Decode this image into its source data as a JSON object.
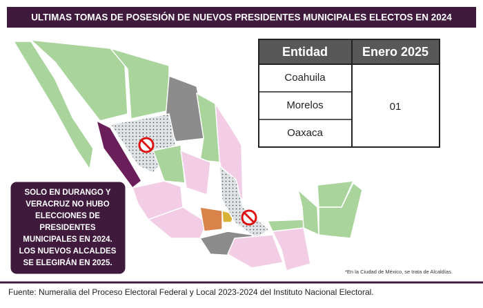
{
  "header": {
    "title": "ULTIMAS TOMAS DE POSESIÓN DE NUEVOS PRESIDENTES MUNICIPALES ELECTOS EN 2024"
  },
  "table": {
    "columns": [
      "Entidad",
      "Enero 2025"
    ],
    "rows": [
      "Coahuila",
      "Morelos",
      "Oaxaca"
    ],
    "value": "01"
  },
  "callout": {
    "lines": [
      "SOLO EN DURANGO Y",
      "VERACRUZ NO HUBO",
      "ELECCIONES DE",
      "PRESIDENTES",
      "MUNICIPALES EN 2024.",
      "LOS NUEVOS ALCALDES",
      "SE ELEGIRÁN EN 2025."
    ]
  },
  "footnote": "*En la Ciudad de México, se trata de Alcaldías.",
  "source": "Fuente: Numeralia del Proceso Electoral Federal y Local 2023-2024 del Instituto Nacional Electoral."
}
